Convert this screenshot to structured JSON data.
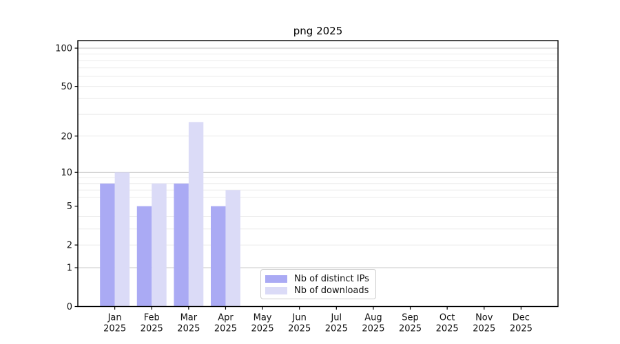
{
  "chart_data": {
    "type": "bar",
    "title": "png 2025",
    "year_label": "2025",
    "categories": [
      "Jan",
      "Feb",
      "Mar",
      "Apr",
      "May",
      "Jun",
      "Jul",
      "Aug",
      "Sep",
      "Oct",
      "Nov",
      "Dec"
    ],
    "series": [
      {
        "name": "Nb of distinct IPs",
        "color": "#aaaaf4",
        "values": [
          8,
          5,
          8,
          5,
          0,
          0,
          0,
          0,
          0,
          0,
          0,
          0
        ]
      },
      {
        "name": "Nb of downloads",
        "color": "#dbdbf7",
        "values": [
          10,
          8,
          26,
          7,
          0,
          0,
          0,
          0,
          0,
          0,
          0,
          0
        ]
      }
    ],
    "y_axis": {
      "scale": "log1p",
      "tick_values": [
        0,
        1,
        2,
        5,
        10,
        20,
        50,
        100
      ],
      "major_gridlines": [
        1,
        10,
        100
      ],
      "minor_gridlines": [
        2,
        3,
        4,
        6,
        7,
        8,
        9,
        20,
        30,
        40,
        50,
        60,
        70,
        80,
        90
      ],
      "ylim": [
        0,
        115
      ]
    },
    "x_axis": {
      "slots": 13,
      "grid": false
    },
    "legend": {
      "position": "lower-center"
    },
    "colors": {
      "major_grid": "#c3c3c3",
      "minor_grid": "#ebebeb",
      "axis": "#000000",
      "text": "#111111",
      "legend_border": "#cccccc"
    }
  }
}
